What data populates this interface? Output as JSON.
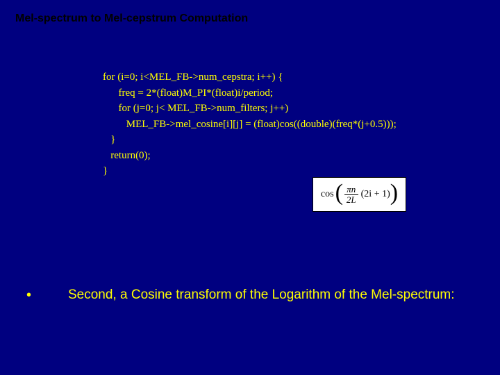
{
  "slide": {
    "title": "Mel-spectrum to Mel-cepstrum Computation",
    "background_color": "#000080",
    "title_color": "#000000",
    "text_color": "#ffff00"
  },
  "code": {
    "l1": "for (i=0; i<MEL_FB->num_cepstra; i++) {",
    "l2": "      freq = 2*(float)M_PI*(float)i/period;",
    "l3": "      for (j=0; j< MEL_FB->num_filters; j++)",
    "l4": "         MEL_FB->mel_cosine[i][j] = (float)cos((double)(freq*(j+0.5)));",
    "l5": "",
    "l6": "   }",
    "l7": "   return(0);",
    "l8": "}"
  },
  "formula": {
    "cos": "cos",
    "numerator": "πn",
    "denominator": "2L",
    "tail": "(2i + 1)",
    "box_bg": "#ffffff",
    "box_border": "#000000"
  },
  "bullet": {
    "marker": "•",
    "text": "Second, a Cosine transform of the Logarithm of the Mel-spectrum:"
  }
}
